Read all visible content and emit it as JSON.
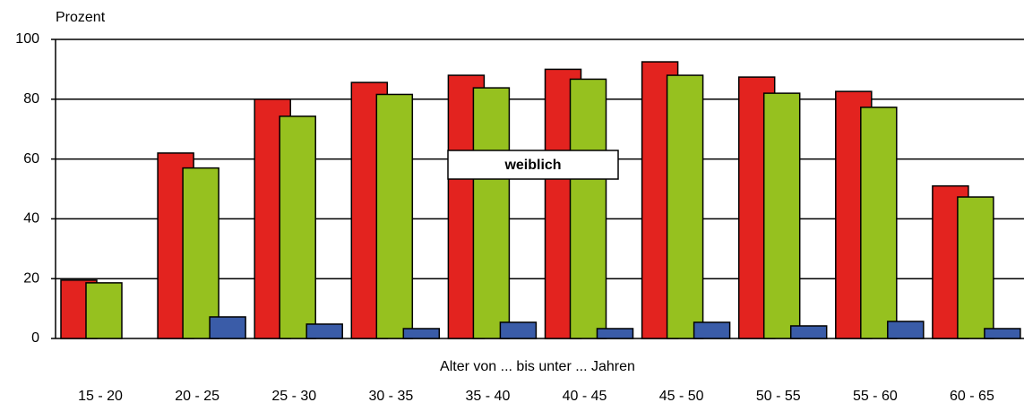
{
  "chart_data": {
    "type": "bar",
    "y_label": "Prozent",
    "x_label": "Alter von ... bis unter ... Jahren",
    "annotation": "weiblich",
    "categories": [
      "15 - 20",
      "20 - 25",
      "25 - 30",
      "30 - 35",
      "35 - 40",
      "40 - 45",
      "45 - 50",
      "50 - 55",
      "55 - 60",
      "60 - 65"
    ],
    "series": [
      {
        "color": "#e3231f",
        "values": [
          19.5,
          62,
          80,
          85.6,
          88,
          90,
          92.5,
          87.4,
          82.6,
          51
        ]
      },
      {
        "color": "#96c11f",
        "values": [
          18.6,
          57,
          74.3,
          81.6,
          83.8,
          86.7,
          88,
          82,
          77.3,
          47.3
        ]
      },
      {
        "color": "#3a5ca8",
        "values": [
          null,
          7.2,
          4.8,
          3.3,
          5.4,
          3.3,
          5.4,
          4.2,
          5.7,
          3.3
        ]
      }
    ],
    "ylim": [
      0,
      100
    ],
    "yticks": [
      0,
      20,
      40,
      60,
      80,
      100
    ],
    "grid": true
  }
}
